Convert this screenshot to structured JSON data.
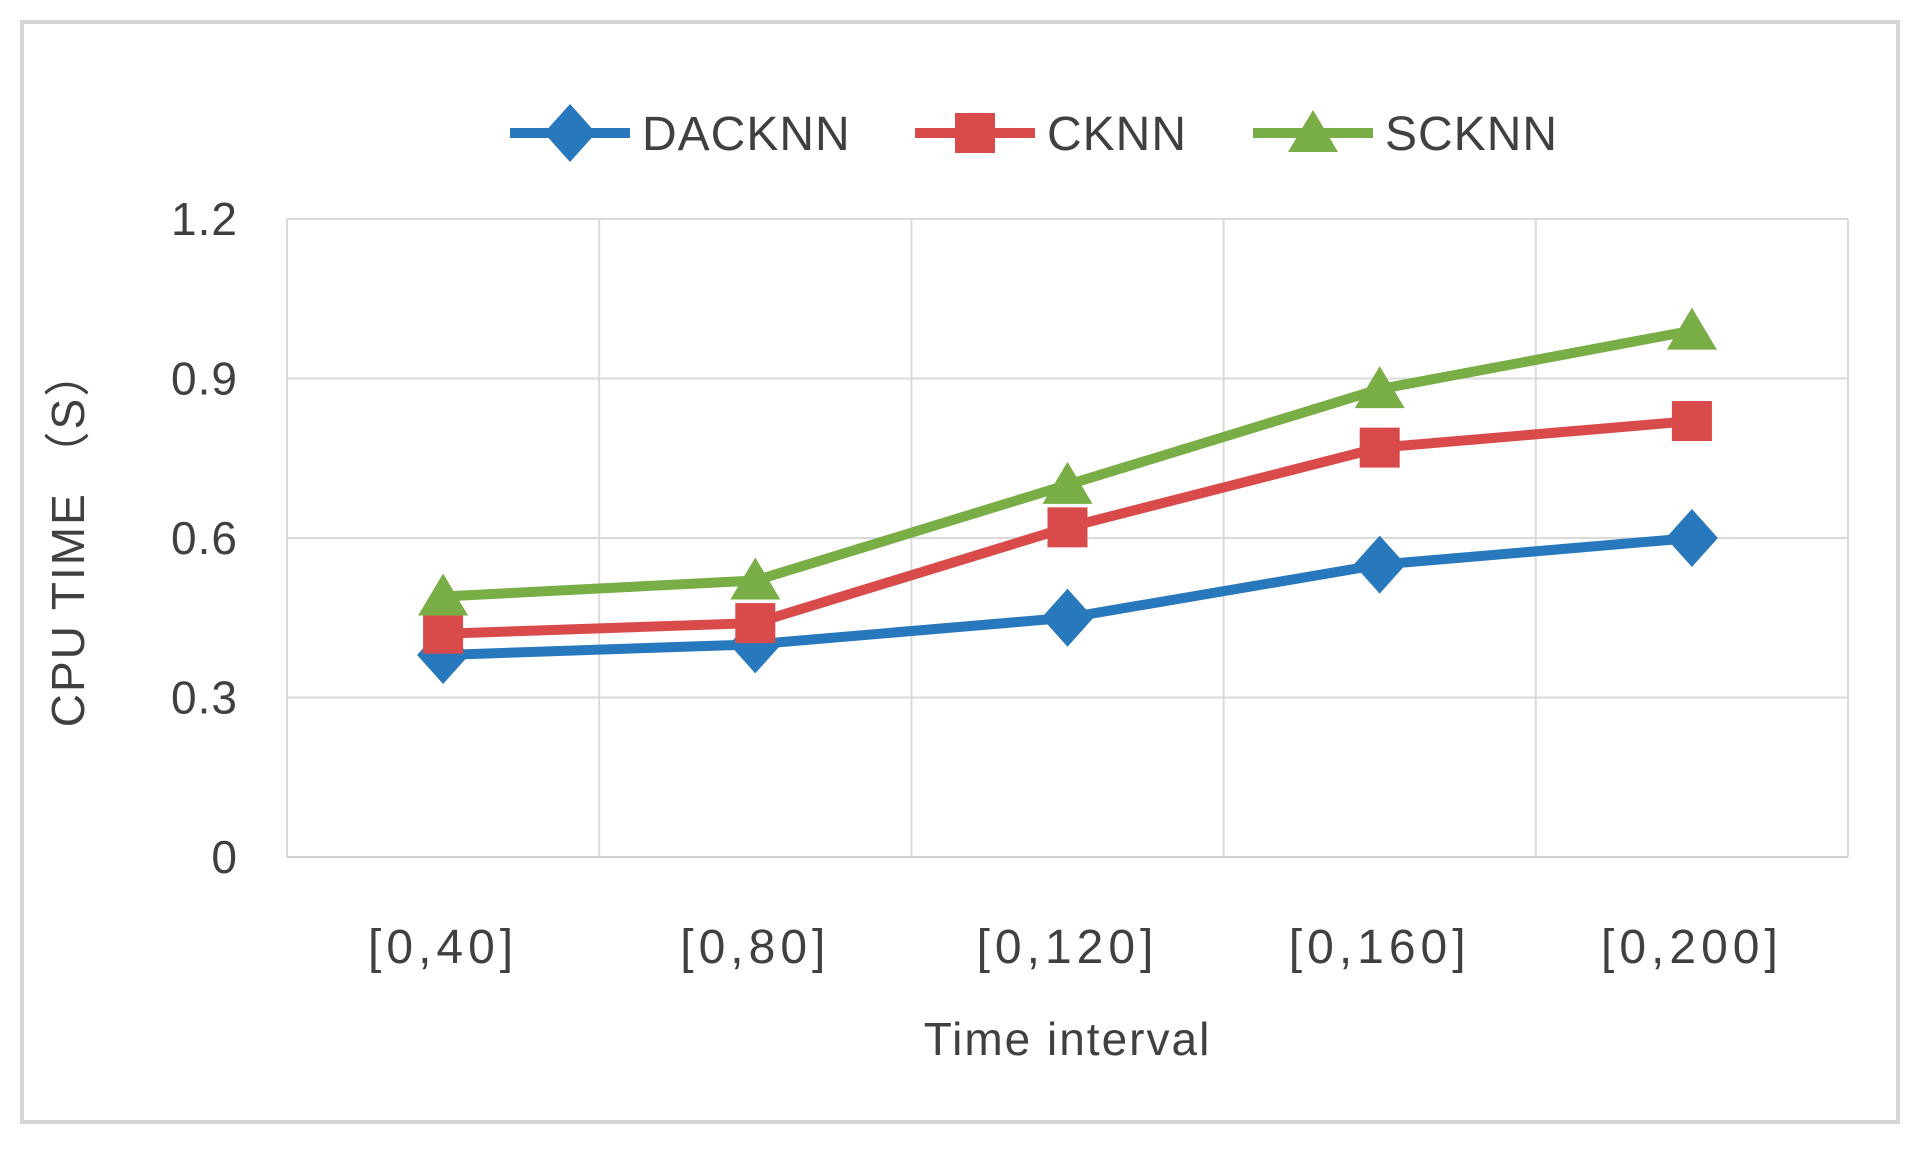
{
  "chart_data": {
    "type": "line",
    "title": "",
    "xlabel": "Time interval",
    "ylabel": "CPU TIME （S）",
    "categories": [
      "[0,40]",
      "[0,80]",
      "[0,120]",
      "[0,160]",
      "[0,200]"
    ],
    "series": [
      {
        "name": "DACKNN",
        "marker": "diamond",
        "color": "#2878BE",
        "values": [
          0.38,
          0.4,
          0.45,
          0.55,
          0.6
        ]
      },
      {
        "name": "CKNN",
        "marker": "square",
        "color": "#D94B4B",
        "values": [
          0.42,
          0.44,
          0.62,
          0.77,
          0.82
        ]
      },
      {
        "name": "SCKNN",
        "marker": "triangle",
        "color": "#79AD46",
        "values": [
          0.49,
          0.52,
          0.7,
          0.88,
          0.99
        ]
      }
    ],
    "ylim": [
      0,
      1.2
    ],
    "y_ticks": [
      0,
      0.3,
      0.6,
      0.9,
      1.2
    ],
    "y_tick_labels": [
      "0",
      "0.3",
      "0.6",
      "0.9",
      "1.2"
    ],
    "grid": true,
    "legend_position": "top"
  },
  "colors": {
    "text": "#404040",
    "gridline": "#DADADA",
    "axis_line": "#CDCDCD",
    "frame_border": "#D6D6D6",
    "background": "#FFFFFF",
    "series_blue": "#2878BE",
    "series_red": "#D94B4B",
    "series_green": "#79AD46"
  }
}
